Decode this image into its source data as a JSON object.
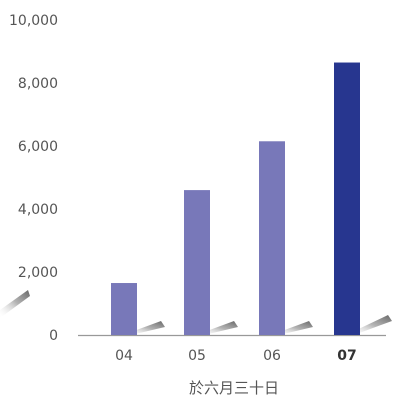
{
  "chart_data": {
    "type": "bar",
    "categories": [
      "04",
      "05",
      "06",
      "07"
    ],
    "values": [
      1650,
      4600,
      6150,
      8650
    ],
    "highlight_index": 3,
    "colors": {
      "bar": "#7878b9",
      "highlight": "#27368f",
      "axis": "#999999"
    },
    "ylim": [
      0,
      10000
    ],
    "yticks": [
      {
        "value": 0,
        "label": "0"
      },
      {
        "value": 2000,
        "label": "2,000"
      },
      {
        "value": 4000,
        "label": "4,000"
      },
      {
        "value": 6000,
        "label": "6,000"
      },
      {
        "value": 8000,
        "label": "8,000"
      },
      {
        "value": 10000,
        "label": "10,000"
      }
    ],
    "xlabel": "於六月三十日",
    "ylabel": "",
    "title": "",
    "grid": false
  }
}
